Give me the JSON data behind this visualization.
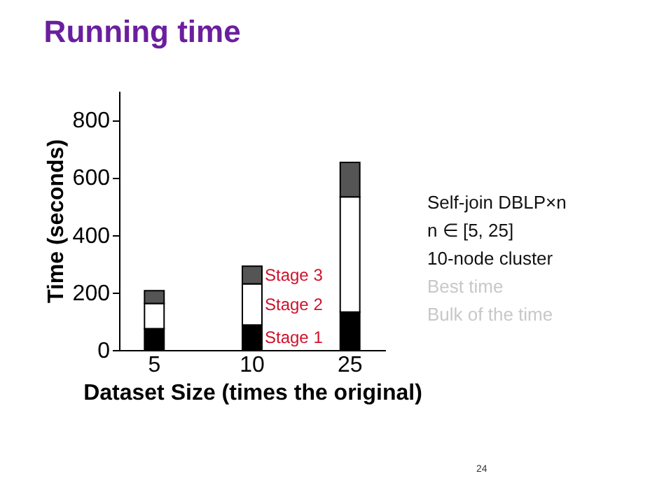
{
  "chart_data": {
    "type": "bar",
    "title": "Running time",
    "xlabel": "Dataset Size (times the original)",
    "ylabel": "Time (seconds)",
    "categories": [
      "5",
      "10",
      "25"
    ],
    "stacked": true,
    "series": [
      {
        "name": "Stage 1",
        "color": "#000000",
        "values": [
          74,
          87,
          132
        ]
      },
      {
        "name": "Stage 2",
        "color": "#ffffff",
        "values": [
          88,
          143,
          400
        ]
      },
      {
        "name": "Stage 3",
        "color": "#555555",
        "values": [
          44,
          61,
          120
        ]
      }
    ],
    "ylim": [
      0,
      900
    ],
    "yticks": [
      0,
      200,
      400,
      600,
      800
    ],
    "grid": false,
    "legend": false,
    "annotations": [
      "Self-join DBLP×n",
      "n ∈ [5, 25]",
      "10-node cluster",
      "Best time",
      "Bulk of the time",
      "24"
    ]
  }
}
